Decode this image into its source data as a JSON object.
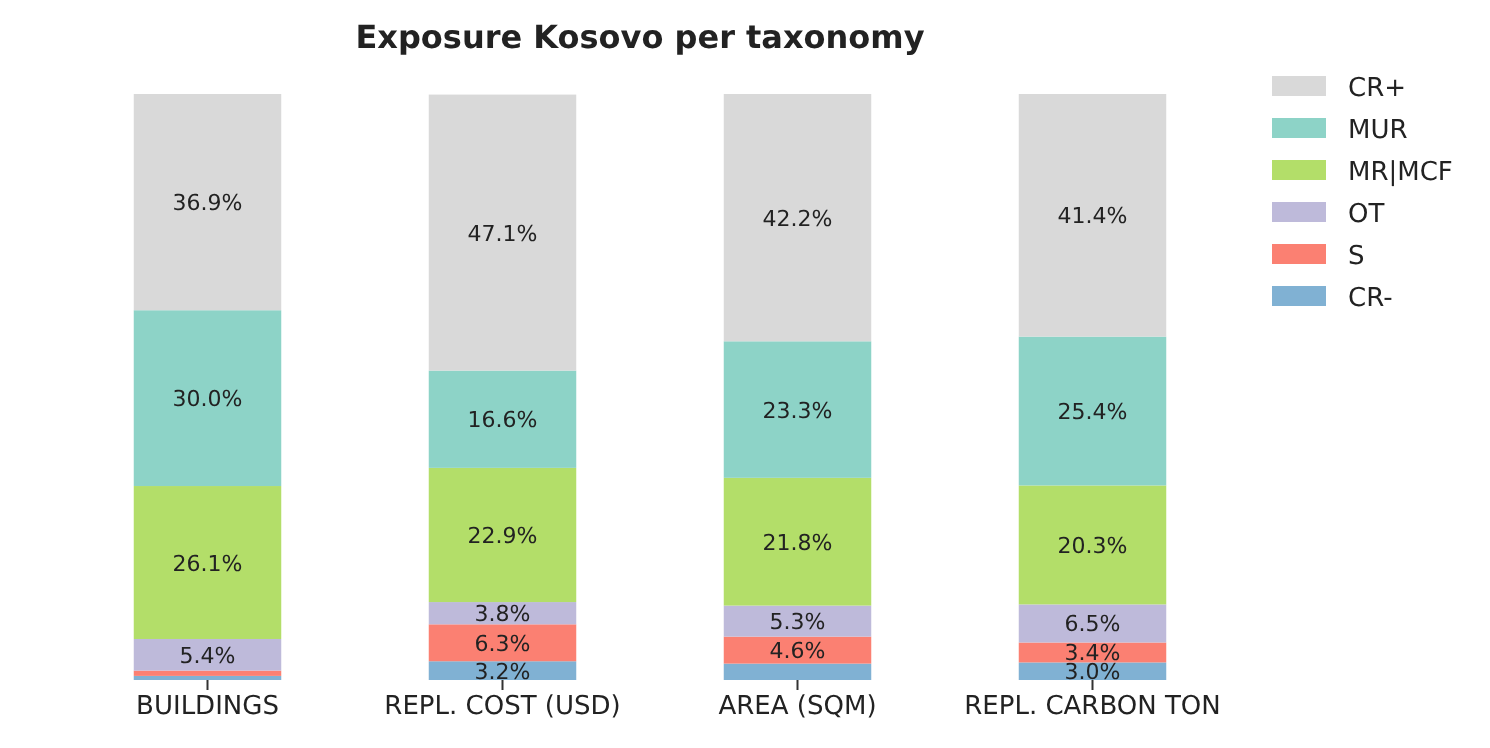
{
  "chart_data": {
    "type": "bar",
    "title": "Exposure Kosovo per taxonomy",
    "stacked": true,
    "legend": "top right",
    "tick_labels": "x",
    "categories": [
      "BUILDINGS",
      "REPL. COST (USD)",
      "AREA (SQM)",
      "REPL. CARBON TON"
    ],
    "series": [
      {
        "name": "CR-",
        "color": "#80b1d3",
        "values": [
          0.7,
          3.2,
          2.8,
          3.0
        ],
        "value_labels": [
          null,
          "3.2%",
          null,
          "3.0%"
        ]
      },
      {
        "name": "S",
        "color": "#fb8072",
        "values": [
          0.9,
          6.3,
          4.6,
          3.4
        ],
        "value_labels": [
          null,
          "6.3%",
          "4.6%",
          "3.4%"
        ]
      },
      {
        "name": "OT",
        "color": "#bebada",
        "values": [
          5.4,
          3.8,
          5.3,
          6.5
        ],
        "value_labels": [
          "5.4%",
          "3.8%",
          "5.3%",
          "6.5%"
        ]
      },
      {
        "name": "MR|MCF",
        "color": "#b3de69",
        "values": [
          26.1,
          22.9,
          21.8,
          20.3
        ],
        "value_labels": [
          "26.1%",
          "22.9%",
          "21.8%",
          "20.3%"
        ]
      },
      {
        "name": "MUR",
        "color": "#8dd3c7",
        "values": [
          30.0,
          16.6,
          23.3,
          25.4
        ],
        "value_labels": [
          "30.0%",
          "16.6%",
          "23.3%",
          "25.4%"
        ]
      },
      {
        "name": "CR+",
        "color": "#d9d9d9",
        "values": [
          36.9,
          47.1,
          42.2,
          41.4
        ],
        "value_labels": [
          "36.9%",
          "47.1%",
          "42.2%",
          "41.4%"
        ]
      }
    ]
  }
}
